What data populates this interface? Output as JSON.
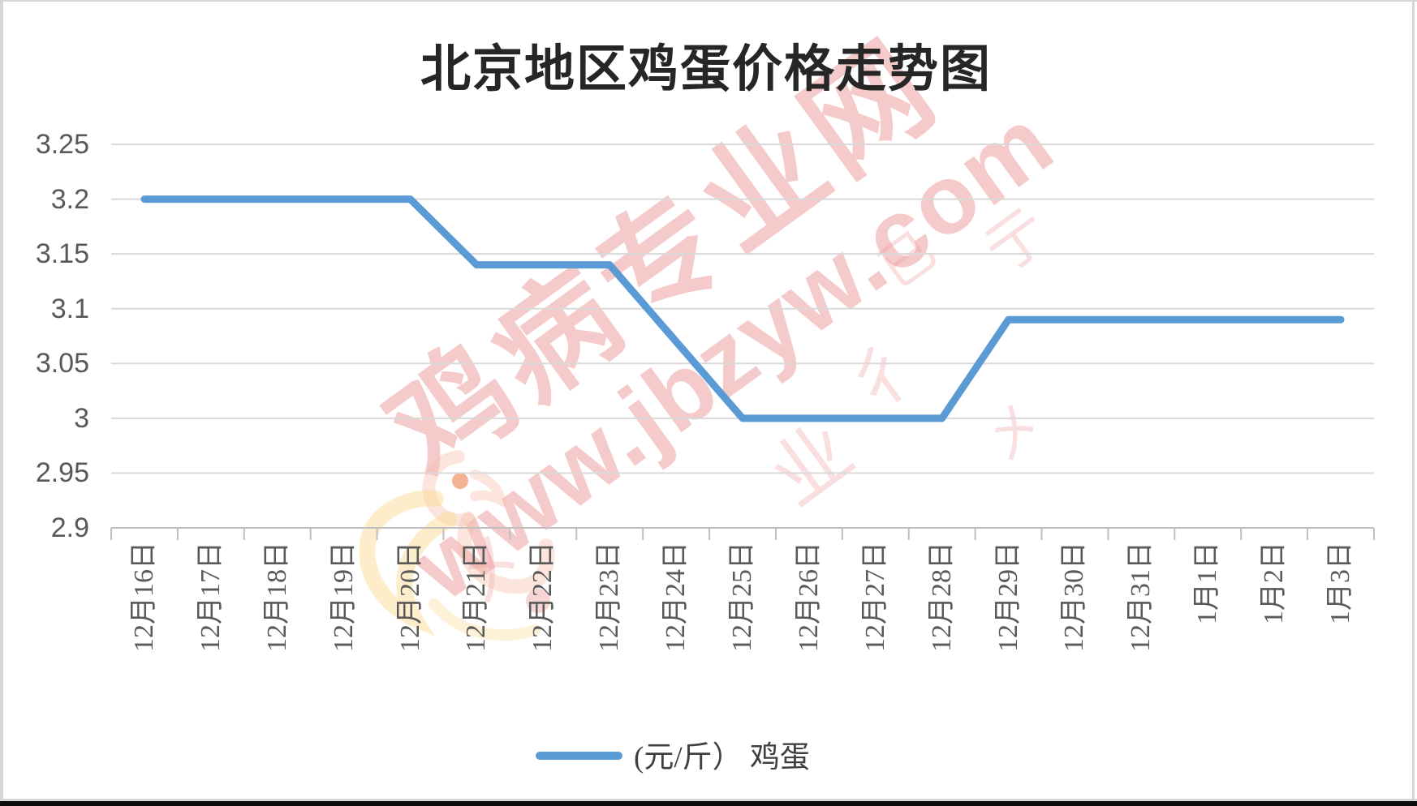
{
  "chart_data": {
    "type": "line",
    "title": "北京地区鸡蛋价格走势图",
    "categories": [
      "12月16日",
      "12月17日",
      "12月18日",
      "12月19日",
      "12月20日",
      "12月21日",
      "12月22日",
      "12月23日",
      "12月24日",
      "12月25日",
      "12月26日",
      "12月27日",
      "12月28日",
      "12月29日",
      "12月30日",
      "12月31日",
      "1月1日",
      "1月2日",
      "1月3日"
    ],
    "series": [
      {
        "name": "(元/斤） 鸡蛋",
        "values": [
          3.2,
          3.2,
          3.2,
          3.2,
          3.2,
          3.14,
          3.14,
          3.14,
          3.07,
          3.0,
          3.0,
          3.0,
          3.0,
          3.09,
          3.09,
          3.09,
          3.09,
          3.09,
          3.09
        ]
      }
    ],
    "xlabel": "",
    "ylabel": "",
    "ylim": [
      2.9,
      3.25
    ],
    "y_ticks": [
      "3.25",
      "3.2",
      "3.15",
      "3.1",
      "3.05",
      "3",
      "2.95",
      "2.9"
    ],
    "grid": "horizontal",
    "legend_position": "bottom",
    "x_tick_label_rotation": 90
  },
  "watermark": {
    "line1": "鸡病专业网",
    "line2": "www.jbzyw.com",
    "fragments": [
      "彳",
      "亍",
      "已",
      "业",
      "㐅",
      "㐅"
    ]
  },
  "colors": {
    "line": "#5B9BD5",
    "gridline": "#D9D9D9",
    "axis": "#BFBFBF",
    "axis_text": "#595959",
    "title_text": "#262626",
    "legend_text": "#404040",
    "watermark_pink": "rgba(232,128,128,0.42)",
    "watermark_faint": "rgba(236,148,148,0.30)",
    "logo_body": "rgba(244,186,166,0.38)",
    "logo_swoosh": "rgba(250,216,140,0.45)",
    "logo_eye": "rgba(238,154,110,0.75)"
  }
}
